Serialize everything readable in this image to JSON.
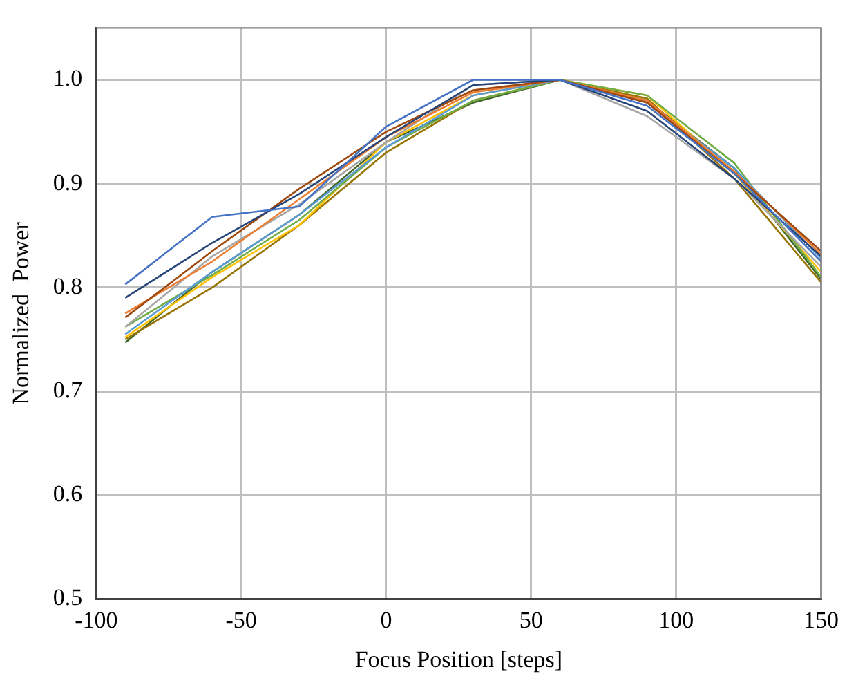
{
  "chart_data": {
    "type": "line",
    "xlabel": "Focus Position [steps]",
    "ylabel": "Normalized  Power",
    "x": [
      -90,
      -60,
      -30,
      0,
      30,
      60,
      90,
      120,
      150
    ],
    "xlim": [
      -100,
      150
    ],
    "xticks": [
      -100,
      -50,
      0,
      50,
      100,
      150
    ],
    "ylim": [
      0.5,
      1.05
    ],
    "yticks": [
      {
        "value": 0.5,
        "label": "0.5"
      },
      {
        "value": 0.6,
        "label": "0.6"
      },
      {
        "value": 0.7,
        "label": "0.7"
      },
      {
        "value": 0.8,
        "label": "0.8"
      },
      {
        "value": 0.9,
        "label": "0.9"
      },
      {
        "value": 1.0,
        "label": "1.0"
      }
    ],
    "grid": true,
    "legend": false,
    "marker": "none",
    "line_style": "solid",
    "series": [
      {
        "color": "#4472c4",
        "values": [
          0.803,
          0.868,
          0.878,
          0.955,
          1.0,
          1.0,
          0.975,
          0.91,
          0.825
        ]
      },
      {
        "color": "#264478",
        "values": [
          0.79,
          0.843,
          0.89,
          0.945,
          0.995,
          1.0,
          0.97,
          0.905,
          0.83
        ]
      },
      {
        "color": "#9e480e",
        "values": [
          0.771,
          0.835,
          0.895,
          0.95,
          0.99,
          1.0,
          0.978,
          0.91,
          0.835
        ]
      },
      {
        "color": "#ed7d31",
        "values": [
          0.775,
          0.825,
          0.885,
          0.945,
          0.988,
          1.0,
          0.98,
          0.912,
          0.832
        ]
      },
      {
        "color": "#a5a5a5",
        "values": [
          0.762,
          0.83,
          0.88,
          0.94,
          0.995,
          1.0,
          0.965,
          0.905,
          0.82
        ]
      },
      {
        "color": "#5b9bd5",
        "values": [
          0.755,
          0.815,
          0.87,
          0.935,
          0.985,
          1.0,
          0.978,
          0.915,
          0.828
        ]
      },
      {
        "color": "#70ad47",
        "values": [
          0.762,
          0.812,
          0.865,
          0.935,
          0.98,
          1.0,
          0.985,
          0.92,
          0.81
        ]
      },
      {
        "color": "#ffc000",
        "values": [
          0.752,
          0.81,
          0.86,
          0.94,
          0.985,
          1.0,
          0.985,
          0.91,
          0.815
        ]
      },
      {
        "color": "#997300",
        "values": [
          0.75,
          0.8,
          0.86,
          0.93,
          0.98,
          1.0,
          0.982,
          0.905,
          0.805
        ]
      },
      {
        "color": "#43682b",
        "values": [
          0.747,
          0.815,
          0.87,
          0.94,
          0.978,
          1.0,
          0.98,
          0.915,
          0.808
        ]
      }
    ]
  }
}
